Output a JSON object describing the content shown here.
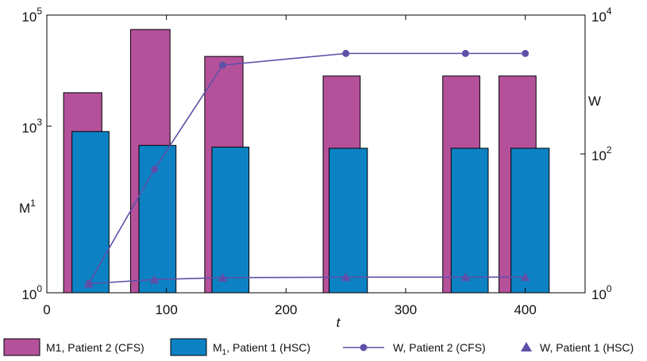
{
  "chart_data": {
    "type": "bar",
    "x": {
      "label": "t",
      "range": [
        0,
        450
      ],
      "ticks": [
        0,
        100,
        200,
        300,
        400
      ],
      "tick_labels": [
        "0",
        "100",
        "200",
        "300",
        "400"
      ]
    },
    "y_left": {
      "label_base": "M",
      "label_sup": "1",
      "scale": "log",
      "range": [
        1,
        100000
      ],
      "ticks": [
        {
          "value": 1,
          "base": "10",
          "exp": "0"
        },
        {
          "value": 1000,
          "base": "10",
          "exp": "3"
        },
        {
          "value": 100000,
          "base": "10",
          "exp": "5"
        }
      ]
    },
    "y_right": {
      "label": "W",
      "scale": "log",
      "range": [
        1,
        10000
      ],
      "ticks": [
        {
          "value": 1,
          "base": "10",
          "exp": "0"
        },
        {
          "value": 100,
          "base": "10",
          "exp": "2"
        },
        {
          "value": 10000,
          "base": "10",
          "exp": "4"
        }
      ]
    },
    "bar_series": [
      {
        "legend": "M1, Patient 2 (CFS)",
        "legend_base": "M1, Patient 2 (CFS)",
        "legend_sub": "",
        "legend_tail": "",
        "color": "#b5519b",
        "axis": "left",
        "bars": [
          {
            "x0": 14,
            "x1": 46,
            "value": 4000
          },
          {
            "x0": 70,
            "x1": 103,
            "value": 55000
          },
          {
            "x0": 132,
            "x1": 164,
            "value": 18000
          },
          {
            "x0": 231,
            "x1": 262,
            "value": 8000
          },
          {
            "x0": 331,
            "x1": 362,
            "value": 8000
          },
          {
            "x0": 378,
            "x1": 409,
            "value": 8000
          }
        ]
      },
      {
        "legend": "M1, Patient 1 (HSC)",
        "legend_base": "M",
        "legend_sub": "1",
        "legend_tail": ", Patient 1 (HSC)",
        "color": "#0c82c4",
        "axis": "left",
        "bars": [
          {
            "x0": 21,
            "x1": 52,
            "value": 800
          },
          {
            "x0": 77,
            "x1": 108,
            "value": 450
          },
          {
            "x0": 138,
            "x1": 169,
            "value": 420
          },
          {
            "x0": 236,
            "x1": 268,
            "value": 400
          },
          {
            "x0": 338,
            "x1": 369,
            "value": 400
          },
          {
            "x0": 388,
            "x1": 420,
            "value": 400
          }
        ]
      }
    ],
    "line_series": [
      {
        "legend": "W, Patient 2 (CFS)",
        "color": "#5e4fa8",
        "marker": "circle",
        "axis": "right",
        "points": [
          {
            "x": 35,
            "y": 1.35
          },
          {
            "x": 90,
            "y": 60
          },
          {
            "x": 147,
            "y": 1900
          },
          {
            "x": 250,
            "y": 2800
          },
          {
            "x": 350,
            "y": 2800
          },
          {
            "x": 400,
            "y": 2800
          }
        ]
      },
      {
        "legend": "W, Patient 1 (HSC)",
        "color": "#5e4fa8",
        "marker": "triangle",
        "axis": "right",
        "points": [
          {
            "x": 35,
            "y": 1.35
          },
          {
            "x": 90,
            "y": 1.55
          },
          {
            "x": 147,
            "y": 1.65
          },
          {
            "x": 250,
            "y": 1.68
          },
          {
            "x": 350,
            "y": 1.68
          },
          {
            "x": 400,
            "y": 1.68
          }
        ]
      }
    ],
    "grid": false,
    "legend_position": "bottom"
  }
}
